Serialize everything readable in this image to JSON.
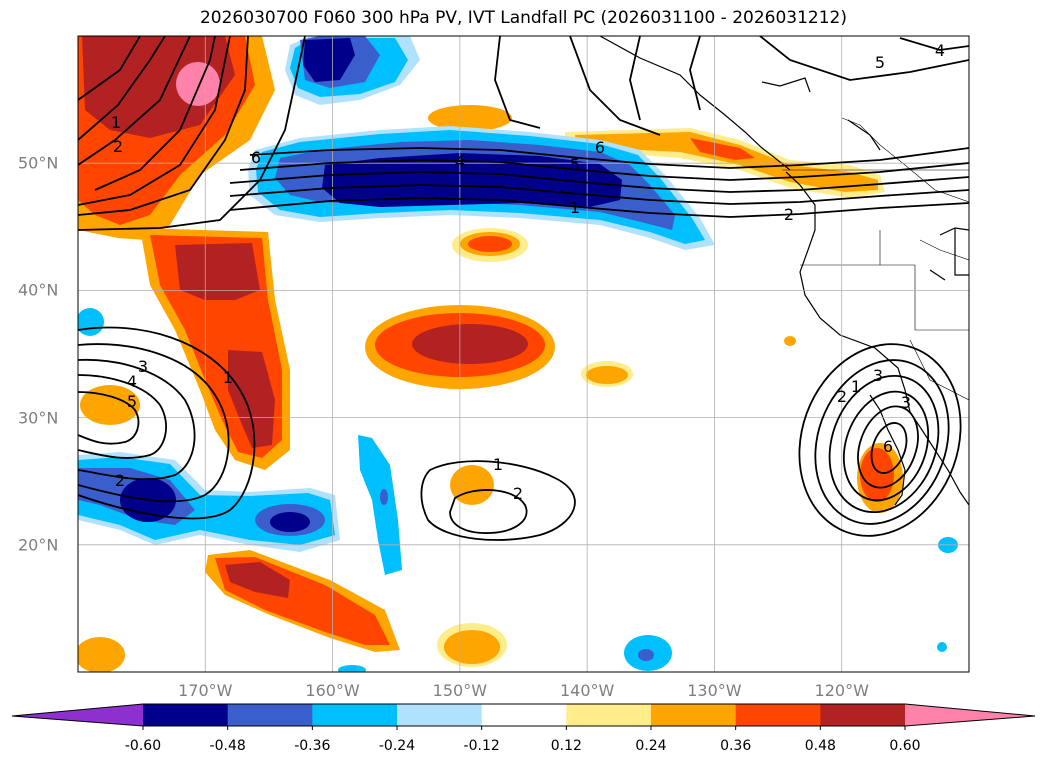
{
  "title": "2026030700 F060 300 hPa PV, IVT Landfall PC (2026031100 - 2026031212)",
  "map": {
    "projection": "lat-lon",
    "lon_range": [
      180,
      110
    ],
    "lat_range": [
      10,
      60
    ],
    "lon_ticks": [
      {
        "value": 170,
        "label": "170°W"
      },
      {
        "value": 160,
        "label": "160°W"
      },
      {
        "value": 150,
        "label": "150°W"
      },
      {
        "value": 140,
        "label": "140°W"
      },
      {
        "value": 130,
        "label": "130°W"
      },
      {
        "value": 120,
        "label": "120°W"
      }
    ],
    "lat_ticks": [
      {
        "value": 50,
        "label": "50°N"
      },
      {
        "value": 40,
        "label": "40°N"
      },
      {
        "value": 30,
        "label": "30°N"
      },
      {
        "value": 20,
        "label": "20°N"
      }
    ]
  },
  "contour_labels": [
    "1",
    "2",
    "3",
    "4",
    "5",
    "6"
  ],
  "colorbar": {
    "levels": [
      "-0.60",
      "-0.48",
      "-0.36",
      "-0.24",
      "-0.12",
      "0.12",
      "0.24",
      "0.36",
      "0.48",
      "0.60"
    ],
    "colors": [
      "#8e2fd0",
      "#00008b",
      "#3a5fcd",
      "#00bfff",
      "#b0e2ff",
      "#ffffff",
      "#ffec8b",
      "#ffa500",
      "#ff4500",
      "#b22222",
      "#ff82ab"
    ]
  }
}
